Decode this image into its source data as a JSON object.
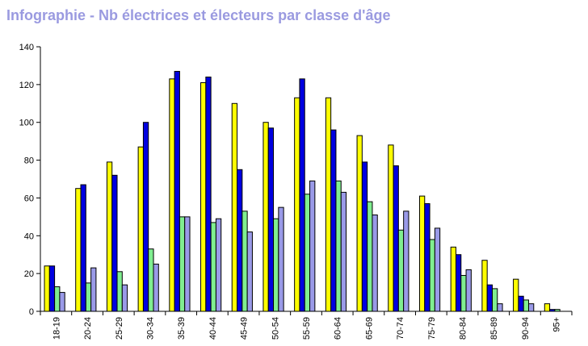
{
  "title": "Infographie - Nb électrices et électeurs par classe d'âge",
  "chart_data": {
    "type": "bar",
    "title": "Infographie - Nb électrices et électeurs par classe d'âge",
    "xlabel": "",
    "ylabel": "",
    "ylim": [
      0,
      140
    ],
    "yticks": [
      0,
      20,
      40,
      60,
      80,
      100,
      120,
      140
    ],
    "grid": false,
    "categories": [
      "18-19",
      "20-24",
      "25-29",
      "30-34",
      "35-39",
      "40-44",
      "45-49",
      "50-54",
      "55-59",
      "60-64",
      "65-69",
      "70-74",
      "75-79",
      "80-84",
      "85-89",
      "90-94",
      "95+"
    ],
    "series": [
      {
        "color": "#ffff00",
        "values": [
          24,
          65,
          79,
          87,
          123,
          121,
          110,
          100,
          113,
          113,
          93,
          88,
          61,
          34,
          27,
          17,
          4
        ]
      },
      {
        "color": "#0000e0",
        "values": [
          24,
          67,
          72,
          100,
          127,
          124,
          75,
          97,
          123,
          96,
          79,
          77,
          57,
          30,
          14,
          8,
          1
        ]
      },
      {
        "color": "#80ee90",
        "values": [
          13,
          15,
          21,
          33,
          50,
          47,
          53,
          49,
          62,
          69,
          58,
          43,
          38,
          19,
          12,
          6,
          1
        ]
      },
      {
        "color": "#9a9ae8",
        "values": [
          10,
          23,
          14,
          25,
          50,
          49,
          42,
          55,
          69,
          63,
          51,
          53,
          44,
          22,
          4,
          4,
          0
        ]
      }
    ]
  }
}
